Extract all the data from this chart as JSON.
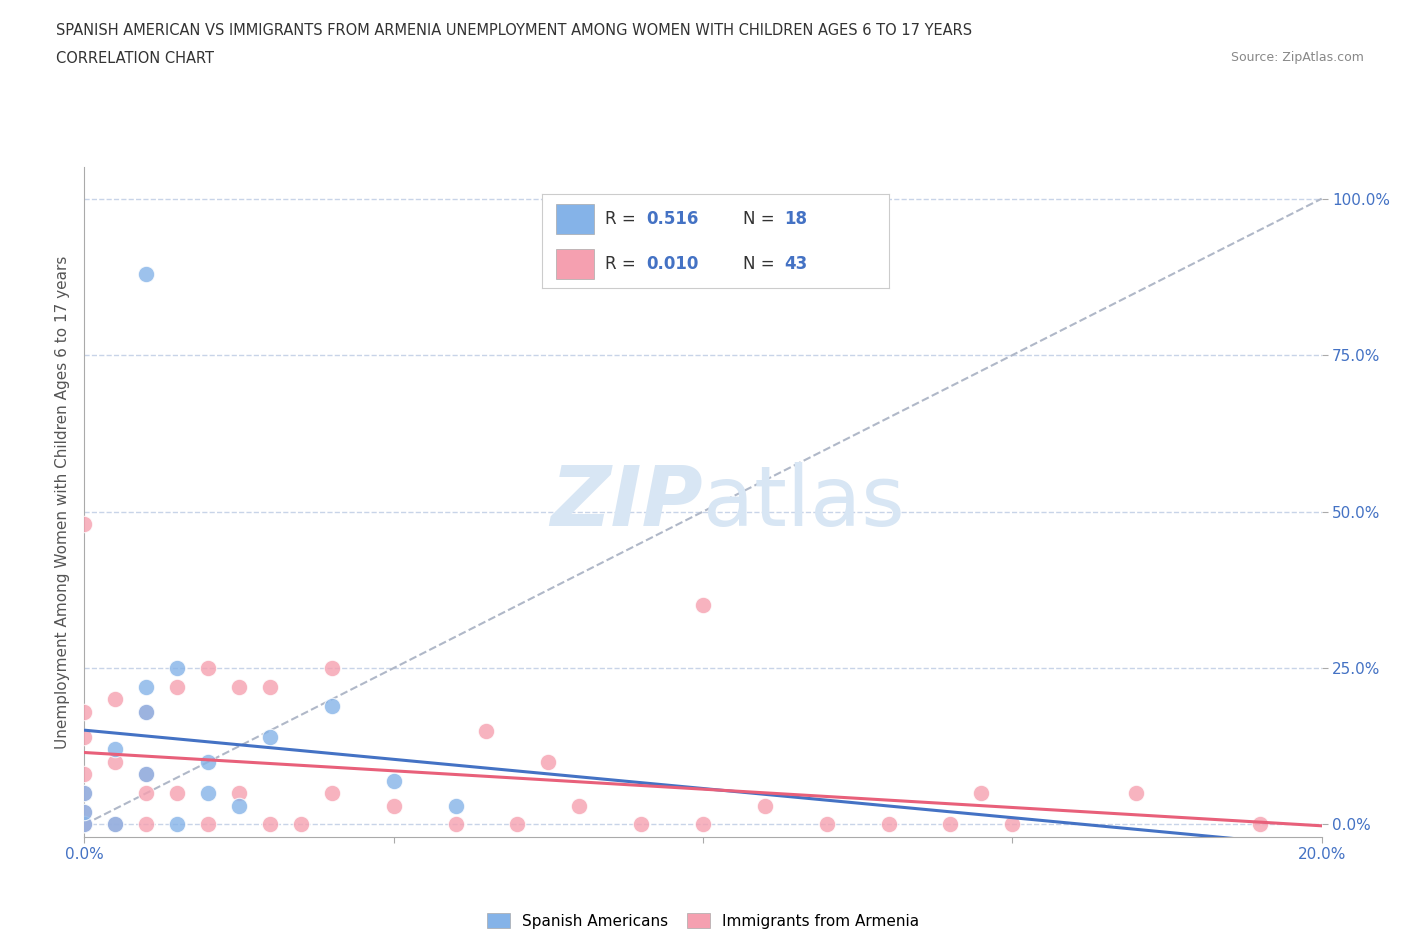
{
  "title_line1": "SPANISH AMERICAN VS IMMIGRANTS FROM ARMENIA UNEMPLOYMENT AMONG WOMEN WITH CHILDREN AGES 6 TO 17 YEARS",
  "title_line2": "CORRELATION CHART",
  "source_text": "Source: ZipAtlas.com",
  "ylabel": "Unemployment Among Women with Children Ages 6 to 17 years",
  "xlim": [
    0.0,
    0.2
  ],
  "ylim": [
    -0.02,
    1.05
  ],
  "ytick_values": [
    0.0,
    0.25,
    0.5,
    0.75,
    1.0
  ],
  "xtick_values": [
    0.0,
    0.05,
    0.1,
    0.15,
    0.2
  ],
  "blue_R": 0.516,
  "blue_N": 18,
  "pink_R": 0.01,
  "pink_N": 43,
  "blue_color": "#85b3e8",
  "pink_color": "#f5a0b0",
  "blue_line_color": "#4472c4",
  "pink_line_color": "#e8607a",
  "diagonal_color": "#b0b8c8",
  "grid_color": "#c8d4e8",
  "background_color": "#ffffff",
  "watermark_color": "#d8e6f4",
  "blue_scatter_x": [
    0.0,
    0.0,
    0.0,
    0.005,
    0.005,
    0.01,
    0.01,
    0.01,
    0.015,
    0.015,
    0.02,
    0.02,
    0.025,
    0.03,
    0.04,
    0.05,
    0.06,
    0.01
  ],
  "blue_scatter_y": [
    0.0,
    0.02,
    0.05,
    0.0,
    0.12,
    0.08,
    0.18,
    0.22,
    0.0,
    0.25,
    0.05,
    0.1,
    0.03,
    0.14,
    0.19,
    0.07,
    0.03,
    0.88
  ],
  "pink_scatter_x": [
    0.0,
    0.0,
    0.0,
    0.0,
    0.0,
    0.0,
    0.0,
    0.0,
    0.005,
    0.005,
    0.005,
    0.01,
    0.01,
    0.01,
    0.015,
    0.015,
    0.02,
    0.02,
    0.025,
    0.025,
    0.03,
    0.03,
    0.035,
    0.04,
    0.04,
    0.05,
    0.06,
    0.065,
    0.07,
    0.075,
    0.08,
    0.09,
    0.1,
    0.1,
    0.11,
    0.12,
    0.13,
    0.14,
    0.145,
    0.15,
    0.17,
    0.19,
    0.01
  ],
  "pink_scatter_y": [
    0.0,
    0.0,
    0.02,
    0.05,
    0.08,
    0.14,
    0.18,
    0.48,
    0.0,
    0.1,
    0.2,
    0.0,
    0.08,
    0.18,
    0.05,
    0.22,
    0.0,
    0.25,
    0.05,
    0.22,
    0.0,
    0.22,
    0.0,
    0.05,
    0.25,
    0.03,
    0.0,
    0.15,
    0.0,
    0.1,
    0.03,
    0.0,
    0.0,
    0.35,
    0.03,
    0.0,
    0.0,
    0.0,
    0.05,
    0.0,
    0.05,
    0.0,
    0.05
  ]
}
